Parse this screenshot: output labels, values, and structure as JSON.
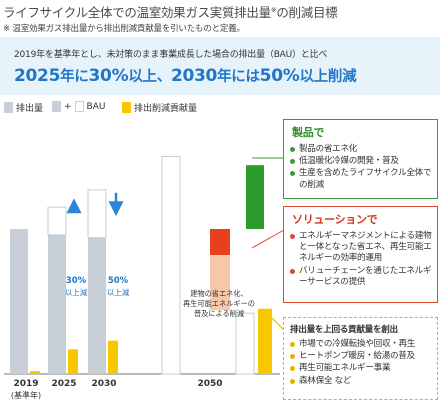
{
  "header": {
    "title": "ライフサイクル全体での温室効果ガス実質排出量",
    "title_mark": "※",
    "title_suffix": "の削減目標",
    "note": "※ 温室効果ガス排出量から排出削減貢献量を引いたものと定義。"
  },
  "banner": {
    "subtitle": "2019年を基準年とし、未対策のまま事業成長した場合の排出量（BAU）と比べ",
    "headline_parts": [
      "2025",
      "年に",
      "30%",
      "以上、",
      "2030",
      "年には",
      "50%",
      "以上削減"
    ]
  },
  "legend": [
    {
      "label": "排出量",
      "color": "#c9cfd6"
    },
    {
      "label": "+",
      "color": "#c9cfd6"
    },
    {
      "label": "BAU",
      "color": "#ffffff"
    },
    {
      "label": "排出削減貢献量",
      "color": "#f7c700"
    }
  ],
  "chart_data": {
    "type": "bar",
    "categories": [
      "2019\n(基準年)",
      "2025",
      "2030",
      "2050"
    ],
    "x_labels": [
      "2019",
      "(基準年)",
      "2025",
      "2030",
      "2050"
    ],
    "series": [
      {
        "name": "排出量",
        "color": "#c9cfd6",
        "values": [
          100,
          96,
          94,
          0
        ]
      },
      {
        "name": "BAU",
        "color": "#ffffff",
        "values": [
          0,
          115,
          127,
          0
        ]
      },
      {
        "name": "排出削減貢献量",
        "color": "#f7c700",
        "values": [
          2,
          17,
          23,
          41
        ]
      }
    ],
    "reductions": [
      {
        "year": "2025",
        "label_1": "30%",
        "label_2": "以上減"
      },
      {
        "year": "2030",
        "label_1": "50%",
        "label_2": "以上減"
      }
    ],
    "waterfall_2050": {
      "start": 150,
      "products_to": 100,
      "solutions_to": 82,
      "remaining": 42,
      "contribution": 41,
      "annotation": [
        "建物の省エネ化、",
        "再生可能エネルギーの",
        "普及による削減"
      ]
    },
    "colors": {
      "products": "#2e9b2e",
      "solutions": "#e8401c",
      "solutions_light": "#f8c6a8",
      "arrow": "#2b86d6"
    },
    "ylim": [
      0,
      155
    ]
  },
  "boxes": {
    "products": {
      "title": "製品で",
      "items": [
        "製品の省エネ化",
        "低温暖化冷媒の開発・普及",
        "生産を含めたライフサイクル全体での削減"
      ]
    },
    "solutions": {
      "title": "ソリューションで",
      "items": [
        "エネルギーマネジメントによる建物と一体となった省エネ、再生可能エネルギーの効率的運用",
        "バリューチェーンを通じたエネルギーサービスの提供"
      ]
    },
    "contribution": {
      "title": "排出量を上回る貢献量を創出",
      "items": [
        "市場での冷媒転換や回収・再生",
        "ヒートポンプ暖房・給湯の普及",
        "再生可能エネルギー事業",
        "森林保全 など"
      ]
    }
  }
}
